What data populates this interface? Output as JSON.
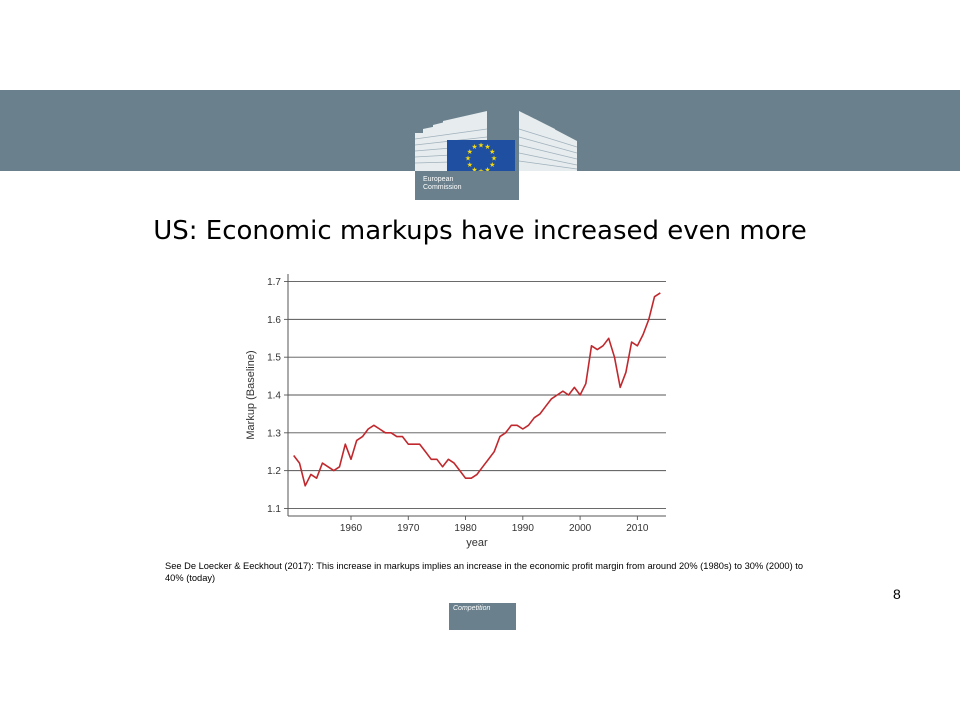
{
  "header": {
    "logo_text_line1": "European",
    "logo_text_line2": "Commission",
    "colors": {
      "band": "#6a818d",
      "flag": "#1f4fa0",
      "stars": "#f5d90a"
    }
  },
  "slide": {
    "title": "US: Economic markups have increased even more",
    "footnote": "See De Loecker & Eeckhout (2017):  This increase in markups implies an increase in the economic profit margin from around 20% (1980s) to 30% (2000) to 40% (today)",
    "page_number": "8",
    "footer_tag": "Competition"
  },
  "chart_data": {
    "type": "line",
    "xlabel": "year",
    "ylabel": "Markup (Baseline)",
    "xlim": [
      1949,
      2015
    ],
    "ylim": [
      1.08,
      1.72
    ],
    "x_ticks": [
      1960,
      1970,
      1980,
      1990,
      2000,
      2010
    ],
    "y_ticks": [
      1.1,
      1.2,
      1.3,
      1.4,
      1.5,
      1.6,
      1.7
    ],
    "grid": "horizontal",
    "line_color": "#c0282d",
    "series": [
      {
        "x": [
          1950,
          1951,
          1952,
          1953,
          1954,
          1955,
          1956,
          1957,
          1958,
          1959,
          1960,
          1961,
          1962,
          1963,
          1964,
          1965,
          1966,
          1967,
          1968,
          1969,
          1970,
          1971,
          1972,
          1973,
          1974,
          1975,
          1976,
          1977,
          1978,
          1979,
          1980,
          1981,
          1982,
          1983,
          1984,
          1985,
          1986,
          1987,
          1988,
          1989,
          1990,
          1991,
          1992,
          1993,
          1994,
          1995,
          1996,
          1997,
          1998,
          1999,
          2000,
          2001,
          2002,
          2003,
          2004,
          2005,
          2006,
          2007,
          2008,
          2009,
          2010,
          2011,
          2012,
          2013,
          2014
        ],
        "values": [
          1.24,
          1.22,
          1.16,
          1.19,
          1.18,
          1.22,
          1.21,
          1.2,
          1.21,
          1.27,
          1.23,
          1.28,
          1.29,
          1.31,
          1.32,
          1.31,
          1.3,
          1.3,
          1.29,
          1.29,
          1.27,
          1.27,
          1.27,
          1.25,
          1.23,
          1.23,
          1.21,
          1.23,
          1.22,
          1.2,
          1.18,
          1.18,
          1.19,
          1.21,
          1.23,
          1.25,
          1.29,
          1.3,
          1.32,
          1.32,
          1.31,
          1.32,
          1.34,
          1.35,
          1.37,
          1.39,
          1.4,
          1.41,
          1.4,
          1.42,
          1.4,
          1.43,
          1.53,
          1.52,
          1.53,
          1.55,
          1.5,
          1.42,
          1.46,
          1.54,
          1.53,
          1.56,
          1.6,
          1.66,
          1.67
        ]
      }
    ]
  }
}
